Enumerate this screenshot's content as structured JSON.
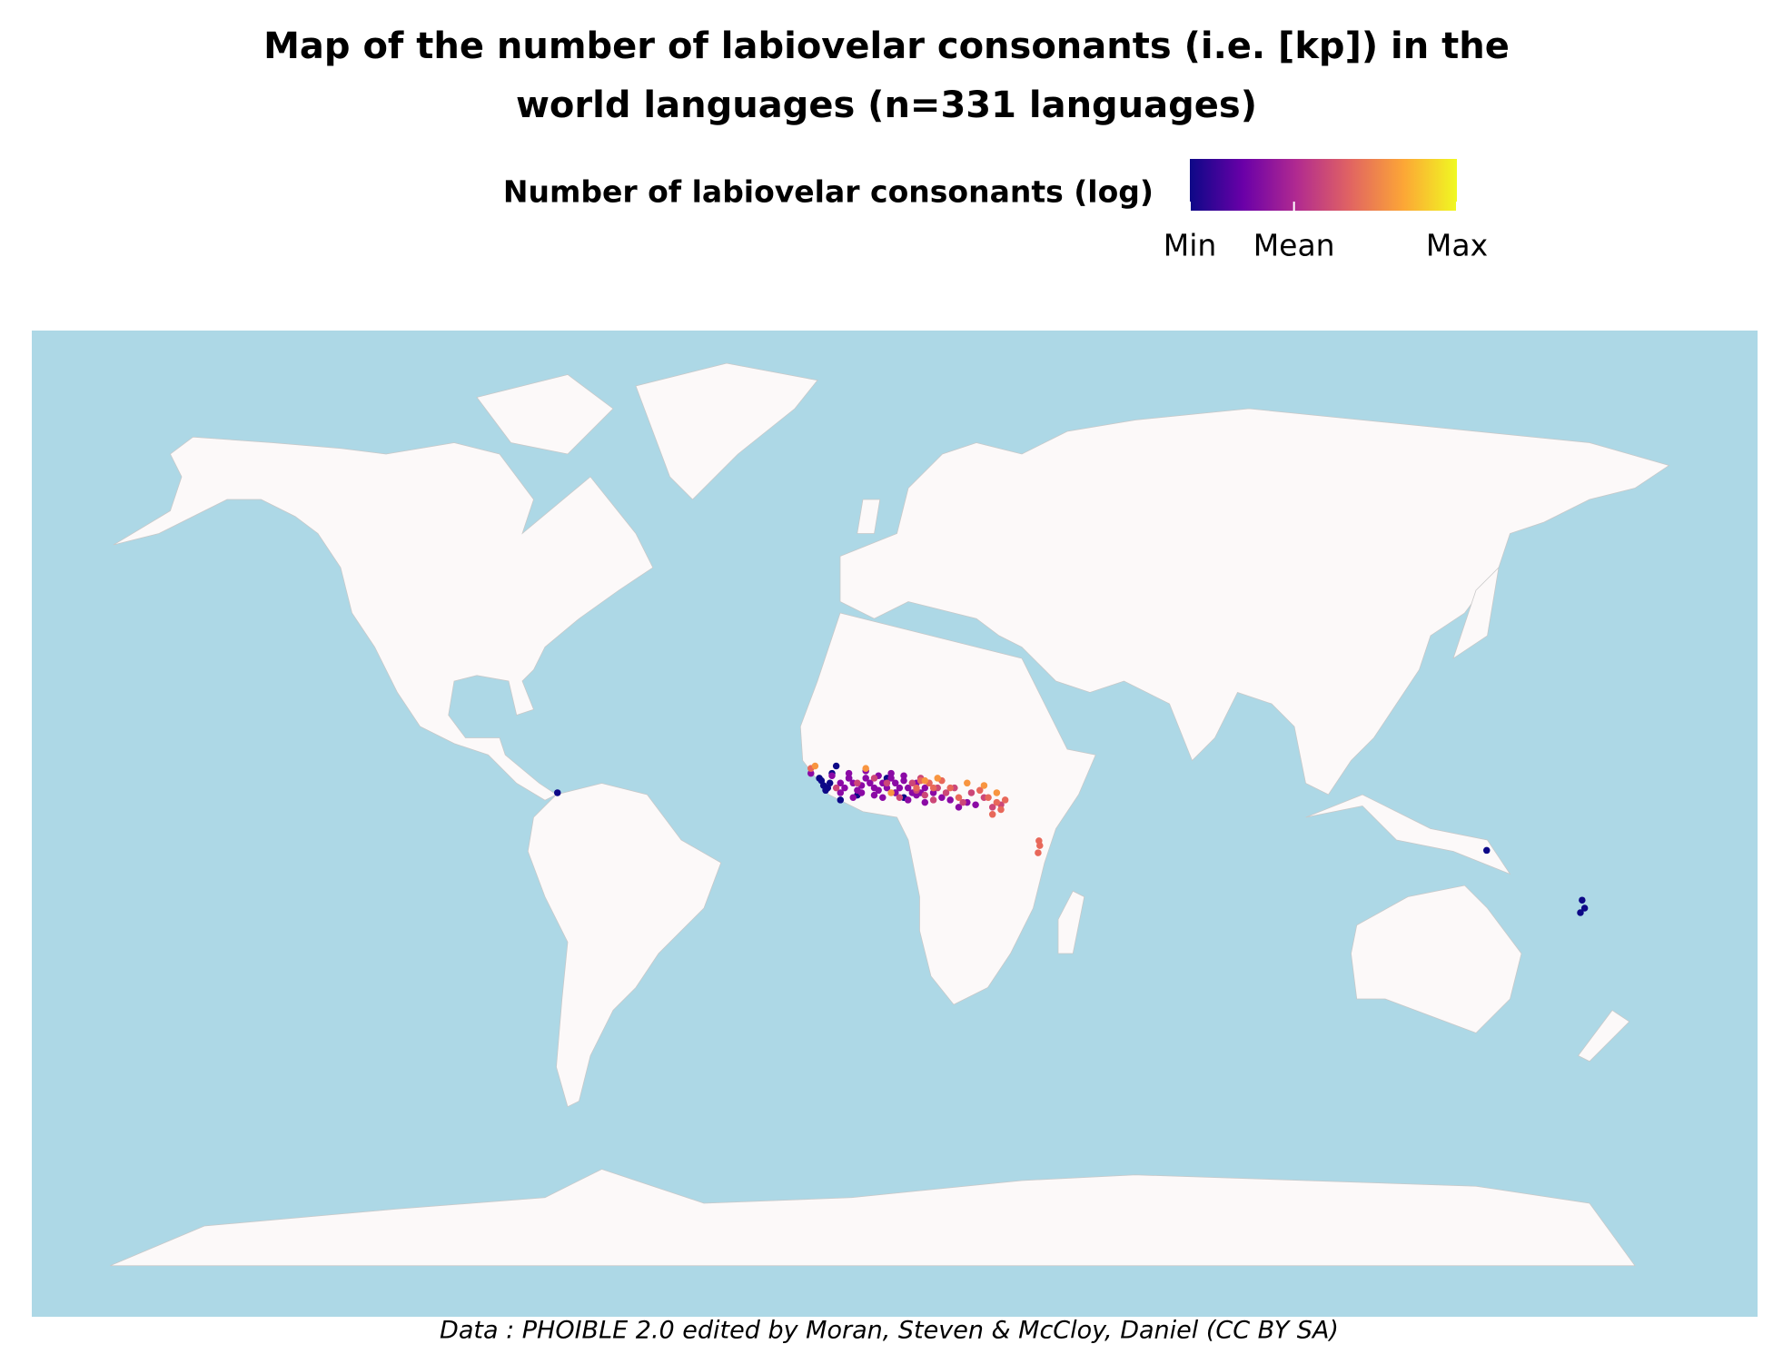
{
  "chart_data": {
    "type": "scatter_geo",
    "title_lines": [
      "Map of the number of labiovelar consonants (i.e. [kp]) in the",
      "world languages (n=331 languages)"
    ],
    "colorbar_title": "Number of labiovelar consonants (log)",
    "colorbar_labels": [
      "Min",
      "Mean",
      "Max"
    ],
    "colorscale": [
      "#0d0887",
      "#6a00a8",
      "#b12a90",
      "#e16462",
      "#fca636",
      "#f0f921"
    ],
    "ocean_color": "#add8e6",
    "caption": "Data : PHOIBLE 2.0 edited by Moran, Steven & McCloy, Daniel (CC BY SA)",
    "series": [
      {
        "color": "#0d0887",
        "lon": [
          -13,
          -12.5,
          -12,
          -11,
          -10.5,
          -11.5,
          -9,
          -6,
          -4,
          3,
          5,
          7,
          -8,
          145,
          167.6,
          168.2,
          167.2,
          -75,
          -10
        ],
        "lat": [
          10,
          9.5,
          8.5,
          8,
          9,
          7.5,
          12.5,
          10,
          6.5,
          10,
          7,
          6,
          5.5,
          -5,
          -15.2,
          -16.8,
          -17.7,
          7,
          11
        ]
      },
      {
        "color": "#8b0aa5",
        "lon": [
          -15,
          -10,
          -8,
          -7,
          -6,
          -5,
          -4,
          -3,
          -2,
          -1,
          0,
          1,
          2,
          3,
          4,
          5,
          6,
          7,
          8,
          9,
          10,
          11,
          12,
          -8,
          -5,
          -3,
          0,
          2,
          5,
          8,
          12,
          14,
          16,
          18,
          20,
          22,
          24,
          -6,
          -2,
          1,
          4,
          7,
          10
        ],
        "lat": [
          11,
          10.5,
          9,
          8,
          10,
          9,
          7.5,
          8.5,
          10,
          9,
          8,
          7.5,
          9,
          8,
          10,
          9,
          8,
          9.5,
          8,
          7,
          6.5,
          7,
          8,
          7,
          6,
          7,
          6.5,
          6,
          7,
          5.5,
          5,
          7,
          6,
          5.5,
          4,
          5,
          4.5,
          11,
          11.5,
          10.5,
          11,
          10.5,
          9
        ]
      },
      {
        "color": "#cc4778",
        "lon": [
          -9,
          -4,
          0,
          3,
          6,
          9,
          10,
          12,
          13,
          15,
          17,
          19,
          21,
          23,
          26,
          28,
          30,
          11,
          14
        ],
        "lat": [
          8,
          9,
          10,
          9,
          6,
          9,
          7.5,
          6.5,
          9,
          8,
          7,
          8,
          5,
          7,
          6,
          4,
          4.5,
          10,
          5.5
        ]
      },
      {
        "color": "#e8685a",
        "lon": [
          -15,
          10,
          11,
          13,
          14,
          16,
          18,
          20,
          25,
          27,
          29,
          30,
          31,
          28,
          39,
          39.2,
          38.8
        ],
        "lat": [
          12,
          8,
          9.5,
          9,
          8,
          9.5,
          8,
          6,
          7.5,
          6,
          5,
          3.5,
          5.5,
          2.5,
          -3,
          -4,
          -5.5
        ]
      },
      {
        "color": "#f89540",
        "lon": [
          -14,
          -2,
          4,
          12,
          15,
          22,
          26,
          29
        ],
        "lat": [
          12.5,
          12,
          7,
          9.5,
          10,
          9,
          8.5,
          7
        ]
      }
    ]
  }
}
